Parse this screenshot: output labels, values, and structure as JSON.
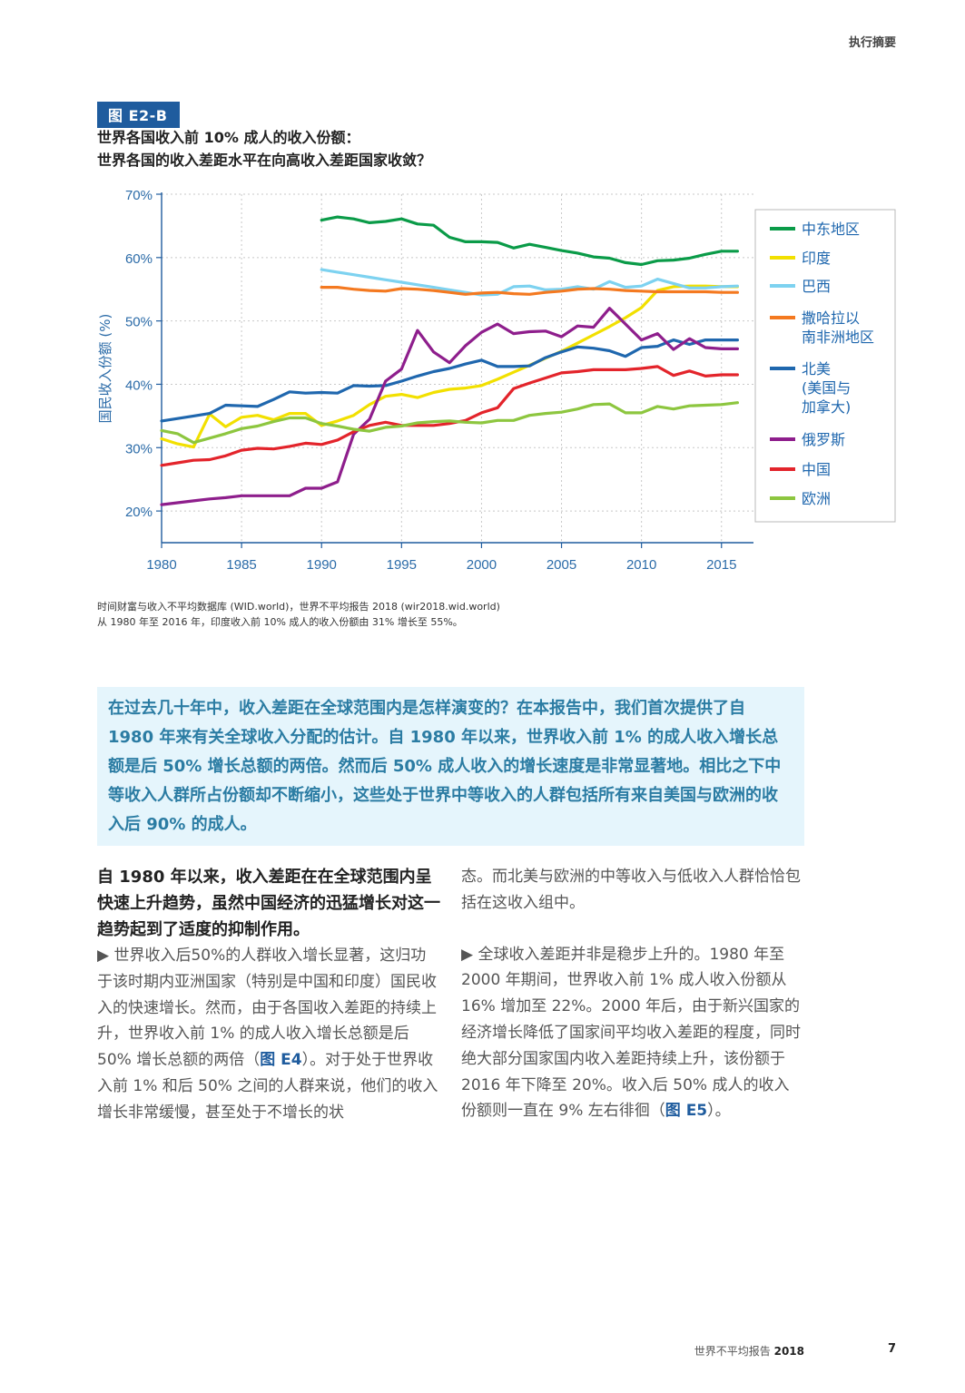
{
  "header": {
    "section": "执行摘要"
  },
  "figure": {
    "badge": "图 E2-B",
    "title_line1": "世界各国收入前 10% 成人的收入份额：",
    "title_line2": "世界各国的收入差距水平在向高收入差距国家收敛？",
    "note_line1": "时间财富与收入不平均数据库 (WID.world)，世界不平均报告 2018 (wir2018.wid.world)",
    "note_line2": "从 1980 年至 2016 年，印度收入前 10% 成人的收入份额由 31% 增长至 55%。"
  },
  "chart_data": {
    "type": "line",
    "title": "世界各国收入前 10% 成人的收入份额",
    "ylabel": "国民收入份额 (%)",
    "xlabel": "",
    "xlim": [
      1980,
      2017
    ],
    "ylim": [
      15,
      70
    ],
    "x_ticks": [
      1980,
      1985,
      1990,
      1995,
      2000,
      2005,
      2010,
      2015
    ],
    "y_ticks": [
      20,
      30,
      40,
      50,
      60,
      70
    ],
    "y_tick_labels": [
      "20%",
      "30%",
      "40%",
      "50%",
      "60%",
      "70%"
    ],
    "grid": true,
    "legend_position": "right",
    "series": [
      {
        "name": "中东地区",
        "legend": [
          "中东地区"
        ],
        "color": "#0a9b48",
        "start": 1990,
        "values": [
          65.9,
          66.4,
          66.1,
          65.5,
          65.7,
          66.1,
          65.3,
          65.1,
          63.2,
          62.5,
          62.5,
          62.4,
          61.5,
          62.1,
          61.6,
          61.1,
          60.7,
          60.1,
          59.9,
          59.2,
          58.9,
          59.5,
          59.6,
          59.9,
          60.5,
          61.0,
          61.0
        ]
      },
      {
        "name": "印度",
        "legend": [
          "印度"
        ],
        "color": "#f2e000",
        "start": 1980,
        "values": [
          31.4,
          30.6,
          30.1,
          35.3,
          33.3,
          34.8,
          35.1,
          34.4,
          35.4,
          35.4,
          33.5,
          34.2,
          35.1,
          36.8,
          38.1,
          38.4,
          37.9,
          38.7,
          39.2,
          39.4,
          39.8,
          40.8,
          41.9,
          43.0,
          44.1,
          45.2,
          46.5,
          47.8,
          49.1,
          50.5,
          52.1,
          54.8,
          55.4,
          55.5,
          55.5,
          55.4,
          55.4
        ]
      },
      {
        "name": "巴西",
        "legend": [
          "巴西"
        ],
        "color": "#7dd2f0",
        "start": 1990,
        "values": [
          58.1,
          57.7,
          57.3,
          56.9,
          56.5,
          56.1,
          55.7,
          55.3,
          54.9,
          54.5,
          54.1,
          54.2,
          55.4,
          55.5,
          54.9,
          55.0,
          55.4,
          55.0,
          56.2,
          55.3,
          55.5,
          56.6,
          55.9,
          55.2,
          55.2,
          55.4,
          55.5
        ]
      },
      {
        "name": "撒哈拉以南非洲地区",
        "legend": [
          "撒哈拉以",
          "南非洲地区"
        ],
        "color": "#f47920",
        "start": 1990,
        "values": [
          55.3,
          55.3,
          55.0,
          54.8,
          54.7,
          55.1,
          55.0,
          54.8,
          54.5,
          54.2,
          54.4,
          54.5,
          54.3,
          54.2,
          54.5,
          54.7,
          55.0,
          55.1,
          55.0,
          54.8,
          54.7,
          54.6,
          54.6,
          54.6,
          54.6,
          54.5,
          54.5
        ]
      },
      {
        "name": "北美(美国与加拿大)",
        "legend": [
          "北美",
          "(美国与",
          "加拿大)"
        ],
        "color": "#1f67ae",
        "start": 1980,
        "values": [
          34.2,
          34.6,
          35.0,
          35.4,
          36.7,
          36.6,
          36.5,
          37.6,
          38.8,
          38.6,
          38.7,
          38.6,
          39.8,
          39.7,
          39.8,
          40.5,
          41.3,
          42.0,
          42.5,
          43.2,
          43.8,
          42.8,
          42.8,
          42.9,
          44.2,
          45.1,
          45.9,
          45.7,
          45.3,
          44.4,
          45.8,
          46.0,
          47.0,
          46.3,
          47.0,
          47.0,
          47.0
        ]
      },
      {
        "name": "俄罗斯",
        "legend": [
          "俄罗斯"
        ],
        "color": "#8e1e8c",
        "start": 1980,
        "values": [
          21.0,
          21.3,
          21.6,
          21.9,
          22.1,
          22.4,
          22.4,
          22.4,
          22.4,
          23.6,
          23.6,
          24.6,
          32.1,
          34.5,
          40.5,
          42.4,
          48.5,
          45.1,
          43.4,
          46.1,
          48.2,
          49.5,
          48.0,
          48.3,
          48.4,
          47.5,
          49.2,
          49.0,
          52.0,
          49.5,
          47.0,
          48.0,
          45.5,
          47.2,
          45.8,
          45.6,
          45.6
        ]
      },
      {
        "name": "中国",
        "legend": [
          "中国"
        ],
        "color": "#e3242b",
        "start": 1980,
        "values": [
          27.2,
          27.6,
          28.0,
          28.1,
          28.7,
          29.6,
          29.9,
          29.8,
          30.2,
          30.7,
          30.5,
          31.2,
          32.5,
          33.5,
          34.0,
          33.5,
          33.5,
          33.5,
          33.8,
          34.3,
          35.5,
          36.3,
          39.3,
          40.2,
          41.0,
          41.8,
          42.0,
          42.3,
          42.3,
          42.3,
          42.5,
          42.8,
          41.4,
          42.1,
          41.3,
          41.5,
          41.5
        ]
      },
      {
        "name": "欧洲",
        "legend": [
          "欧洲"
        ],
        "color": "#8dc63f",
        "start": 1980,
        "values": [
          32.7,
          32.2,
          30.8,
          31.5,
          32.2,
          33.0,
          33.4,
          34.1,
          34.7,
          34.7,
          33.8,
          33.4,
          32.9,
          32.6,
          33.2,
          33.4,
          33.9,
          34.1,
          34.2,
          34.0,
          33.9,
          34.3,
          34.3,
          35.1,
          35.4,
          35.6,
          36.1,
          36.8,
          36.9,
          35.5,
          35.5,
          36.5,
          36.1,
          36.6,
          36.7,
          36.8,
          37.1
        ]
      }
    ]
  },
  "callout": {
    "text": "在过去几十年中，收入差距在全球范围内是怎样演变的？在本报告中，我们首次提供了自 1980 年来有关全球收入分配的估计。自 1980 年以来，世界收入前 1% 的成人收入增长总额是后 50% 增长总额的两倍。然而后 50% 成人收入的增长速度是非常显著地。相比之下中等收入人群所占份额却不断缩小，这些处于世界中等收入的人群包括所有来自美国与欧洲的收入后 90% 的成人。"
  },
  "body": {
    "heading": "自 1980 年以来，收入差距在在全球范围内呈快速上升趋势，虽然中国经济的迅猛增长对这一趋势起到了适度的抑制作用。",
    "left_para_a": "▶ 世界收入后50%的人群收入增长显著，这归功于该时期内亚洲国家（特别是中国和印度）国民收入的快速增长。然而，由于各国收入差距的持续上升，世界收入前 1% 的成人收入增长总额是后 50% 增长总额的两倍（",
    "left_ref": "图 E4",
    "left_para_b": "）。对于处于世界收入前 1% 和后 50% 之间的人群来说，他们的收入增长非常缓慢，甚至处于不增长的状",
    "right_para1": "态。而北美与欧洲的中等收入与低收入人群恰恰包括在这收入组中。",
    "right_para2_a": "▶ 全球收入差距并非是稳步上升的。1980 年至 2000 年期间，世界收入前 1% 成人收入份额从 16% 增加至 22%。2000 年后，由于新兴国家的经济增长降低了国家间平均收入差距的程度，同时绝大部分国家国内收入差距持续上升，该份额于 2016 年下降至 20%。收入后 50% 成人的收入份额则一直在 9% 左右徘徊（",
    "right_ref": "图 E5",
    "right_para2_b": "）。"
  },
  "footer": {
    "report_name": "世界不平均报告",
    "year": "2018",
    "page": "7"
  }
}
